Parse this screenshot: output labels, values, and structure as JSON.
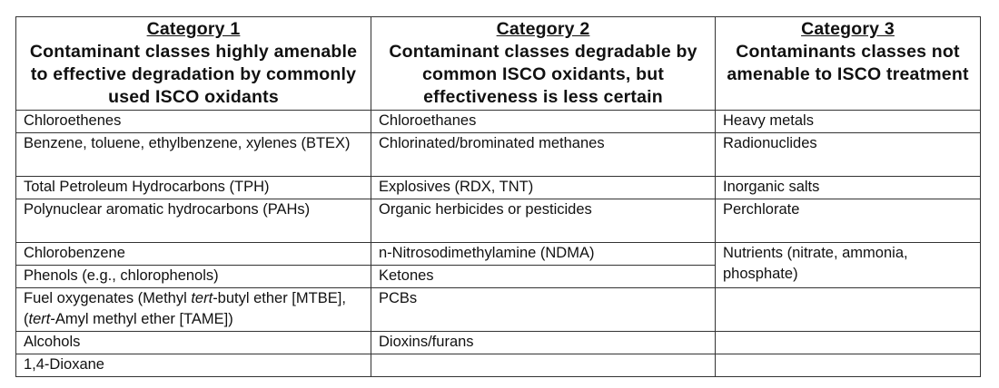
{
  "headers": [
    {
      "category": "Category 1",
      "description": "Contaminant classes highly amenable to effective degradation by commonly used ISCO oxidants"
    },
    {
      "category": "Category 2",
      "description": "Contaminant classes degradable by common ISCO oxidants, but effectiveness is less certain"
    },
    {
      "category": "Category 3",
      "description": "Contaminants classes not amenable to ISCO treatment"
    }
  ],
  "col1": [
    "Chloroethenes",
    "Benzene, toluene, ethylbenzene, xylenes (BTEX)",
    "Total Petroleum Hydrocarbons (TPH)",
    "Polynuclear aromatic hydrocarbons (PAHs)",
    "Chlorobenzene",
    "Phenols (e.g., chlorophenols)",
    "",
    "Alcohols",
    "1,4-Dioxane"
  ],
  "fuel_oxygenates": {
    "a": "Fuel oxygenates (Methyl ",
    "b": "tert",
    "c": "-butyl ether [MTBE], (",
    "d": "tert",
    "e": "-Amyl methyl ether [TAME])"
  },
  "col2": [
    "Chloroethanes",
    "Chlorinated/brominated methanes",
    "Explosives (RDX, TNT)",
    "Organic herbicides or pesticides",
    "n-Nitrosodimethylamine (NDMA)",
    "Ketones",
    "PCBs",
    "Dioxins/furans",
    ""
  ],
  "col3": [
    "Heavy metals",
    "Radionuclides",
    "Inorganic salts",
    "Perchlorate",
    "Nutrients (nitrate, ammonia, phosphate)",
    "",
    "",
    ""
  ]
}
